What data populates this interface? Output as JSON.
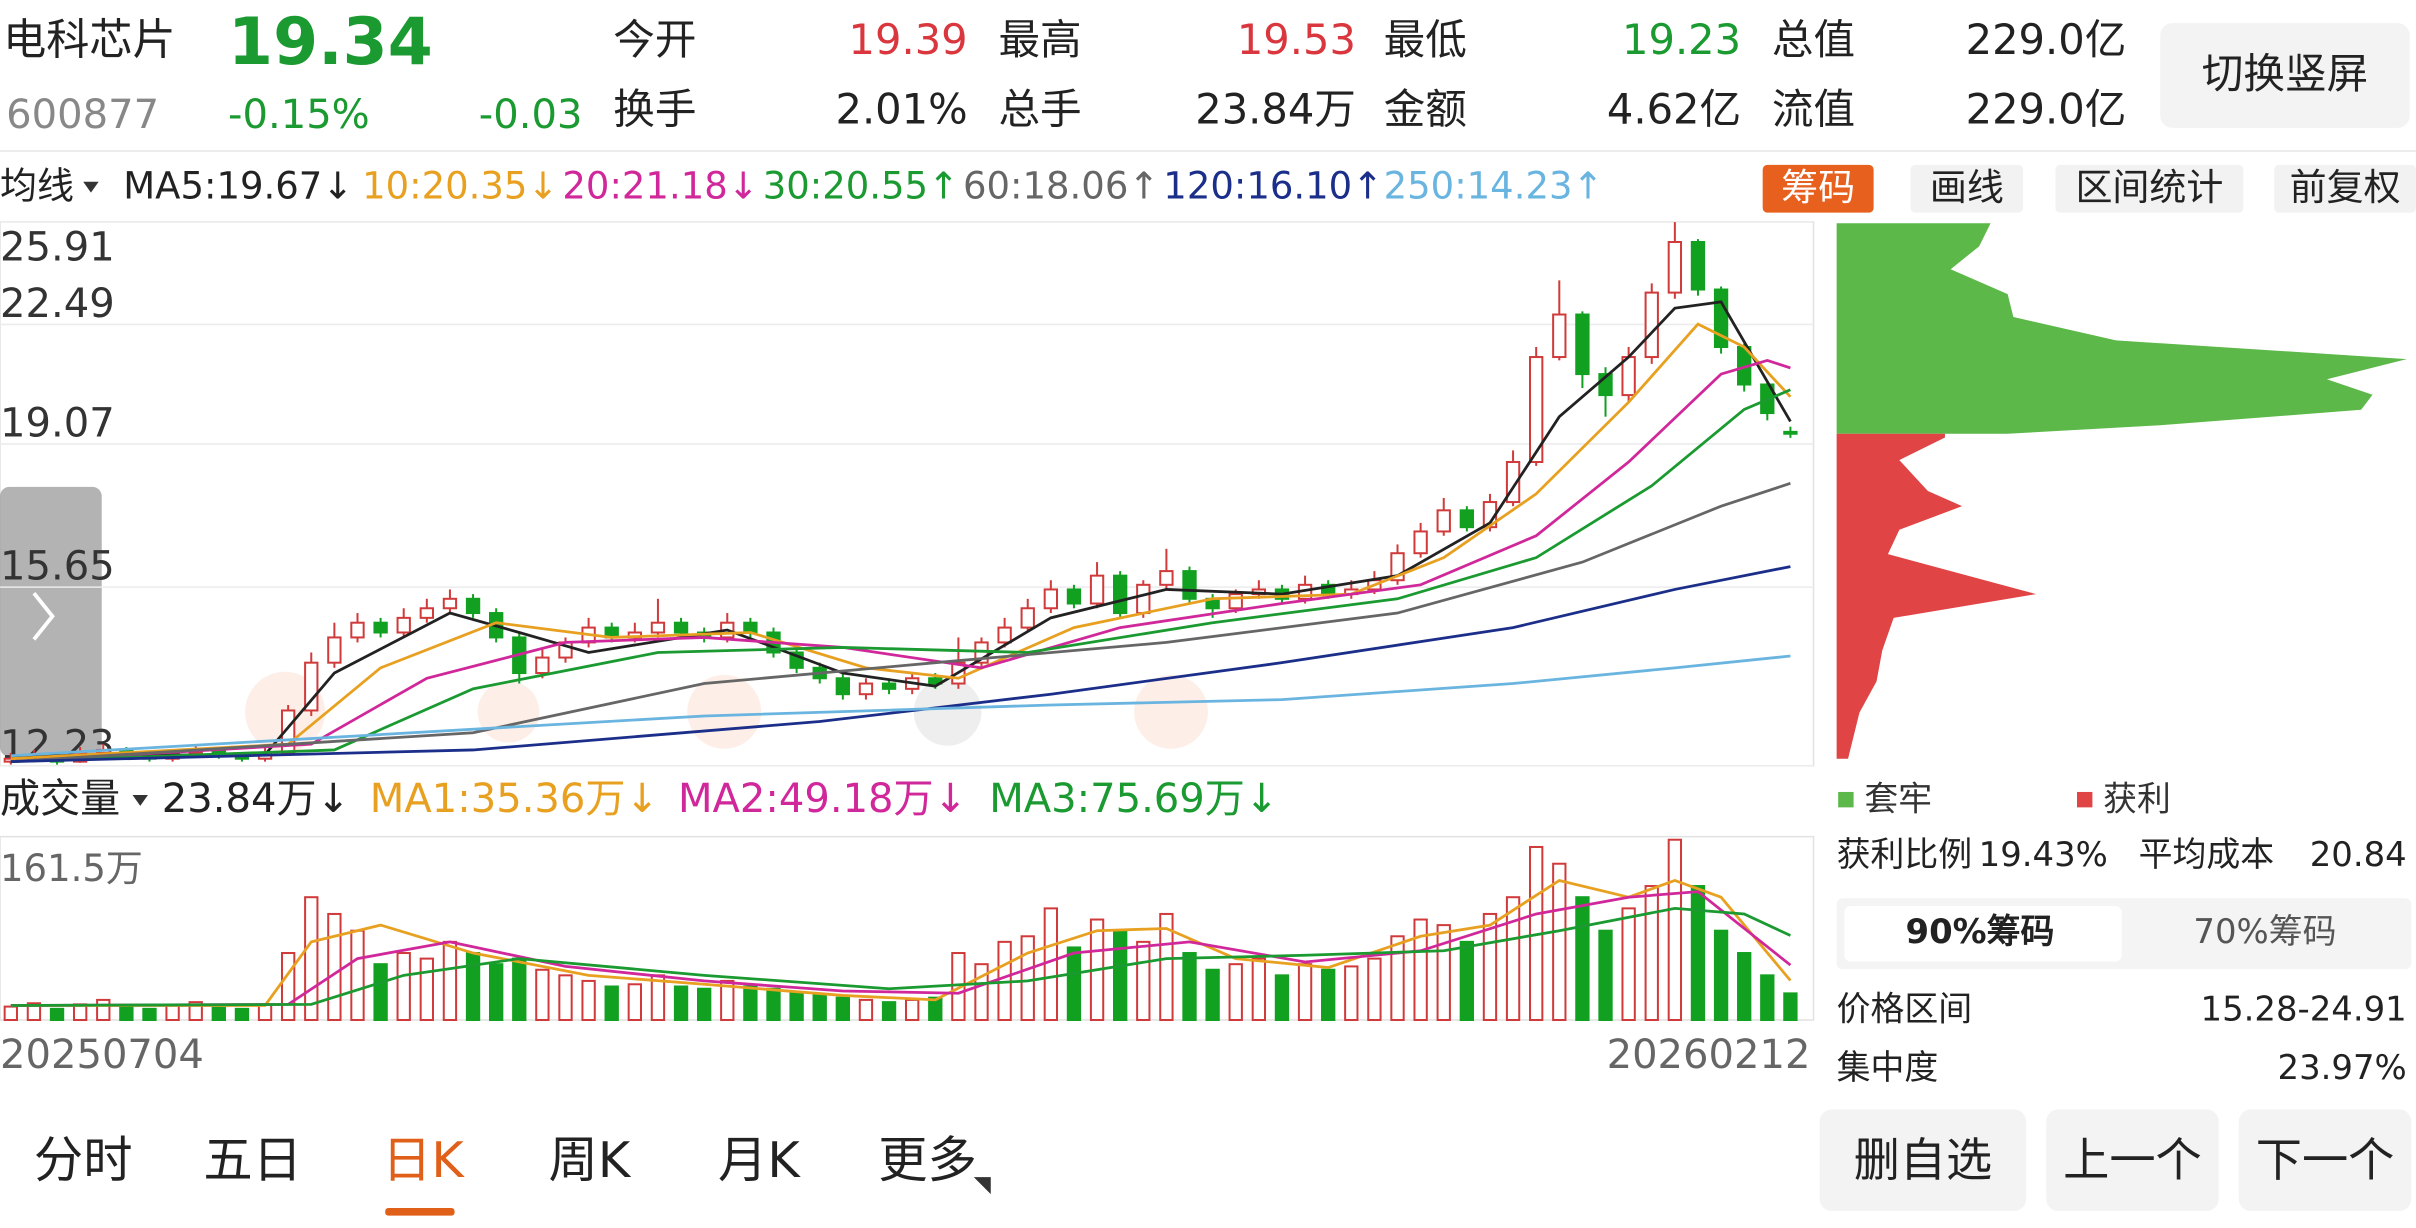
{
  "header": {
    "name": "电科芯片",
    "price": "19.34",
    "code": "600877",
    "change_pct": "-0.15%",
    "change": "-0.03",
    "price_color": "#1a9a30",
    "stats": [
      {
        "label": "今开",
        "value": "19.39",
        "color": "#d9363e"
      },
      {
        "label": "最高",
        "value": "19.53",
        "color": "#d9363e"
      },
      {
        "label": "最低",
        "value": "19.23",
        "color": "#1a9a30"
      },
      {
        "label": "总值",
        "value": "229.0亿",
        "color": "#222222"
      },
      {
        "label": "换手",
        "value": "2.01%",
        "color": "#222222"
      },
      {
        "label": "总手",
        "value": "23.84万",
        "color": "#222222"
      },
      {
        "label": "金额",
        "value": "4.62亿",
        "color": "#222222"
      },
      {
        "label": "流值",
        "value": "229.0亿",
        "color": "#222222"
      }
    ],
    "switch_button": "切换竖屏"
  },
  "ma_bar": {
    "selector": "均线",
    "items": [
      {
        "text": "MA5:19.67↓",
        "color": "#222222"
      },
      {
        "text": "10:20.35↓",
        "color": "#e8a020"
      },
      {
        "text": "20:21.18↓",
        "color": "#d0289a"
      },
      {
        "text": "30:20.55↑",
        "color": "#1a9a30"
      },
      {
        "text": "60:18.06↑",
        "color": "#666666"
      },
      {
        "text": "120:16.10↑",
        "color": "#1b2f8a"
      },
      {
        "text": "250:14.23↑",
        "color": "#6ab4e0"
      }
    ],
    "tools": [
      "筹码",
      "画线",
      "区间统计",
      "前复权"
    ]
  },
  "kline": {
    "type": "candlestick",
    "log_scale": true,
    "ylim": [
      12.23,
      25.91
    ],
    "yticks": [
      12.23,
      15.65,
      19.07,
      22.49,
      25.91
    ],
    "grid": true,
    "up_color": "#d03a3a",
    "down_color": "#12a020",
    "candles": [
      [
        12.3,
        12.35,
        12.45,
        12.25
      ],
      [
        12.35,
        12.4,
        12.5,
        12.3
      ],
      [
        12.4,
        12.3,
        12.45,
        12.25
      ],
      [
        12.3,
        12.45,
        12.55,
        12.28
      ],
      [
        12.45,
        12.5,
        12.6,
        12.4
      ],
      [
        12.5,
        12.4,
        12.55,
        12.35
      ],
      [
        12.4,
        12.35,
        12.45,
        12.3
      ],
      [
        12.35,
        12.45,
        12.5,
        12.3
      ],
      [
        12.45,
        12.5,
        12.6,
        12.4
      ],
      [
        12.5,
        12.4,
        12.55,
        12.35
      ],
      [
        12.4,
        12.35,
        12.45,
        12.3
      ],
      [
        12.35,
        12.45,
        12.55,
        12.3
      ],
      [
        12.45,
        13.2,
        13.3,
        12.4
      ],
      [
        13.2,
        14.1,
        14.3,
        13.1
      ],
      [
        14.1,
        14.6,
        14.9,
        14.0
      ],
      [
        14.6,
        14.9,
        15.1,
        14.5
      ],
      [
        14.9,
        14.7,
        15.0,
        14.6
      ],
      [
        14.7,
        15.0,
        15.2,
        14.6
      ],
      [
        15.0,
        15.2,
        15.4,
        14.9
      ],
      [
        15.2,
        15.4,
        15.6,
        15.1
      ],
      [
        15.4,
        15.1,
        15.5,
        15.0
      ],
      [
        15.1,
        14.6,
        15.2,
        14.5
      ],
      [
        14.6,
        13.9,
        14.7,
        13.7
      ],
      [
        13.9,
        14.2,
        14.4,
        13.8
      ],
      [
        14.2,
        14.5,
        14.6,
        14.1
      ],
      [
        14.5,
        14.8,
        15.0,
        14.4
      ],
      [
        14.8,
        14.6,
        14.9,
        14.5
      ],
      [
        14.6,
        14.7,
        14.9,
        14.5
      ],
      [
        14.7,
        14.9,
        15.4,
        14.6
      ],
      [
        14.9,
        14.7,
        15.0,
        14.6
      ],
      [
        14.7,
        14.6,
        14.8,
        14.5
      ],
      [
        14.6,
        14.9,
        15.1,
        14.5
      ],
      [
        14.9,
        14.7,
        15.0,
        14.6
      ],
      [
        14.7,
        14.3,
        14.8,
        14.2
      ],
      [
        14.3,
        14.0,
        14.4,
        13.9
      ],
      [
        14.0,
        13.8,
        14.1,
        13.7
      ],
      [
        13.8,
        13.5,
        13.9,
        13.4
      ],
      [
        13.5,
        13.7,
        13.8,
        13.4
      ],
      [
        13.7,
        13.6,
        13.8,
        13.5
      ],
      [
        13.6,
        13.8,
        13.9,
        13.5
      ],
      [
        13.8,
        13.7,
        13.9,
        13.6
      ],
      [
        13.7,
        14.1,
        14.6,
        13.6
      ],
      [
        14.1,
        14.5,
        14.6,
        14.0
      ],
      [
        14.5,
        14.8,
        15.0,
        14.4
      ],
      [
        14.8,
        15.2,
        15.4,
        14.7
      ],
      [
        15.2,
        15.6,
        15.8,
        15.1
      ],
      [
        15.6,
        15.3,
        15.7,
        15.2
      ],
      [
        15.3,
        15.9,
        16.2,
        15.2
      ],
      [
        15.9,
        15.1,
        16.0,
        15.0
      ],
      [
        15.1,
        15.7,
        15.8,
        15.0
      ],
      [
        15.7,
        16.0,
        16.5,
        15.6
      ],
      [
        16.0,
        15.4,
        16.1,
        15.3
      ],
      [
        15.4,
        15.2,
        15.5,
        15.0
      ],
      [
        15.2,
        15.5,
        15.6,
        15.1
      ],
      [
        15.5,
        15.6,
        15.8,
        15.4
      ],
      [
        15.6,
        15.4,
        15.7,
        15.3
      ],
      [
        15.4,
        15.7,
        15.9,
        15.3
      ],
      [
        15.7,
        15.5,
        15.8,
        15.4
      ],
      [
        15.5,
        15.6,
        15.8,
        15.4
      ],
      [
        15.6,
        15.8,
        16.0,
        15.5
      ],
      [
        15.8,
        16.4,
        16.6,
        15.7
      ],
      [
        16.4,
        16.9,
        17.1,
        16.3
      ],
      [
        16.9,
        17.4,
        17.7,
        16.8
      ],
      [
        17.4,
        17.0,
        17.5,
        16.9
      ],
      [
        17.0,
        17.6,
        17.8,
        16.9
      ],
      [
        17.6,
        18.6,
        18.9,
        17.5
      ],
      [
        18.6,
        21.5,
        21.8,
        18.5
      ],
      [
        21.5,
        22.8,
        23.9,
        21.4
      ],
      [
        22.8,
        21.0,
        22.9,
        20.6
      ],
      [
        21.0,
        20.4,
        21.2,
        19.8
      ],
      [
        20.4,
        21.5,
        21.8,
        20.2
      ],
      [
        21.5,
        23.5,
        23.8,
        21.3
      ],
      [
        23.5,
        25.2,
        25.9,
        23.3
      ],
      [
        25.2,
        23.6,
        25.3,
        23.4
      ],
      [
        23.6,
        21.8,
        23.7,
        21.6
      ],
      [
        21.8,
        20.7,
        21.9,
        20.5
      ],
      [
        20.7,
        19.9,
        20.8,
        19.7
      ],
      [
        19.39,
        19.34,
        19.53,
        19.23
      ]
    ],
    "ma_lines": [
      {
        "color": "#222222",
        "points": [
          [
            0,
            12.4
          ],
          [
            11,
            12.42
          ],
          [
            14,
            13.9
          ],
          [
            19,
            15.1
          ],
          [
            22,
            14.7
          ],
          [
            25,
            14.3
          ],
          [
            31,
            14.75
          ],
          [
            36,
            13.9
          ],
          [
            40,
            13.65
          ],
          [
            45,
            15.0
          ],
          [
            50,
            15.6
          ],
          [
            55,
            15.5
          ],
          [
            60,
            15.9
          ],
          [
            64,
            17.1
          ],
          [
            67,
            19.8
          ],
          [
            70,
            21.5
          ],
          [
            72,
            23.0
          ],
          [
            74,
            23.2
          ],
          [
            77,
            19.67
          ]
        ]
      },
      {
        "color": "#e8a020",
        "points": [
          [
            0,
            12.35
          ],
          [
            12,
            12.6
          ],
          [
            16,
            14.0
          ],
          [
            21,
            14.9
          ],
          [
            26,
            14.6
          ],
          [
            32,
            14.7
          ],
          [
            37,
            14.0
          ],
          [
            41,
            13.8
          ],
          [
            46,
            14.8
          ],
          [
            52,
            15.4
          ],
          [
            58,
            15.5
          ],
          [
            62,
            16.3
          ],
          [
            66,
            17.8
          ],
          [
            70,
            20.2
          ],
          [
            73,
            22.5
          ],
          [
            75,
            21.8
          ],
          [
            77,
            20.35
          ]
        ]
      },
      {
        "color": "#d0289a",
        "points": [
          [
            0,
            12.3
          ],
          [
            13,
            12.6
          ],
          [
            18,
            13.8
          ],
          [
            24,
            14.5
          ],
          [
            30,
            14.6
          ],
          [
            36,
            14.4
          ],
          [
            42,
            14.0
          ],
          [
            48,
            14.8
          ],
          [
            55,
            15.3
          ],
          [
            61,
            15.7
          ],
          [
            66,
            16.8
          ],
          [
            70,
            18.6
          ],
          [
            74,
            21.0
          ],
          [
            76,
            21.4
          ],
          [
            77,
            21.18
          ]
        ]
      },
      {
        "color": "#1a9a30",
        "points": [
          [
            0,
            12.3
          ],
          [
            14,
            12.5
          ],
          [
            20,
            13.6
          ],
          [
            28,
            14.3
          ],
          [
            36,
            14.4
          ],
          [
            44,
            14.3
          ],
          [
            52,
            14.9
          ],
          [
            60,
            15.4
          ],
          [
            66,
            16.3
          ],
          [
            71,
            18.0
          ],
          [
            75,
            20.0
          ],
          [
            77,
            20.55
          ]
        ]
      },
      {
        "color": "#666666",
        "points": [
          [
            0,
            12.3
          ],
          [
            20,
            12.8
          ],
          [
            30,
            13.7
          ],
          [
            40,
            14.1
          ],
          [
            50,
            14.5
          ],
          [
            60,
            15.1
          ],
          [
            68,
            16.2
          ],
          [
            74,
            17.5
          ],
          [
            77,
            18.06
          ]
        ]
      },
      {
        "color": "#1b2f8a",
        "points": [
          [
            0,
            12.3
          ],
          [
            20,
            12.5
          ],
          [
            35,
            13.0
          ],
          [
            45,
            13.5
          ],
          [
            55,
            14.1
          ],
          [
            65,
            14.8
          ],
          [
            72,
            15.6
          ],
          [
            77,
            16.1
          ]
        ]
      },
      {
        "color": "#6ab4e0",
        "points": [
          [
            0,
            12.4
          ],
          [
            30,
            13.1
          ],
          [
            45,
            13.3
          ],
          [
            55,
            13.4
          ],
          [
            65,
            13.7
          ],
          [
            72,
            14.0
          ],
          [
            77,
            14.23
          ]
        ]
      }
    ]
  },
  "volume": {
    "selector": "成交量",
    "items": [
      {
        "text": "23.84万↓",
        "color": "#222222"
      },
      {
        "text": "MA1:35.36万↓",
        "color": "#e8a020"
      },
      {
        "text": "MA2:49.18万↓",
        "color": "#d0289a"
      },
      {
        "text": "MA3:75.69万↓",
        "color": "#1a9a30"
      }
    ],
    "max_label": "161.5万",
    "ylim": [
      0,
      161.5
    ],
    "values": [
      12,
      15,
      10,
      14,
      18,
      12,
      10,
      13,
      16,
      11,
      10,
      14,
      60,
      110,
      95,
      80,
      50,
      60,
      55,
      70,
      60,
      50,
      55,
      45,
      40,
      35,
      30,
      32,
      40,
      30,
      28,
      35,
      30,
      28,
      25,
      22,
      20,
      18,
      16,
      18,
      20,
      60,
      50,
      70,
      75,
      100,
      65,
      90,
      80,
      70,
      95,
      60,
      45,
      50,
      55,
      40,
      50,
      45,
      48,
      55,
      75,
      90,
      85,
      70,
      95,
      110,
      155,
      140,
      110,
      80,
      100,
      120,
      161.5,
      120,
      80,
      60,
      40,
      23.84
    ],
    "ma_lines": [
      {
        "color": "#e8a020",
        "points": [
          [
            0,
            13
          ],
          [
            11,
            13
          ],
          [
            13,
            70
          ],
          [
            16,
            85
          ],
          [
            20,
            60
          ],
          [
            25,
            40
          ],
          [
            30,
            32
          ],
          [
            36,
            22
          ],
          [
            40,
            18
          ],
          [
            44,
            60
          ],
          [
            47,
            80
          ],
          [
            50,
            82
          ],
          [
            53,
            55
          ],
          [
            57,
            47
          ],
          [
            61,
            75
          ],
          [
            64,
            85
          ],
          [
            67,
            125
          ],
          [
            70,
            110
          ],
          [
            72,
            125
          ],
          [
            74,
            110
          ],
          [
            77,
            35.36
          ]
        ]
      },
      {
        "color": "#d0289a",
        "points": [
          [
            0,
            13
          ],
          [
            12,
            14
          ],
          [
            15,
            55
          ],
          [
            19,
            70
          ],
          [
            24,
            48
          ],
          [
            30,
            35
          ],
          [
            36,
            26
          ],
          [
            41,
            24
          ],
          [
            46,
            60
          ],
          [
            51,
            70
          ],
          [
            56,
            52
          ],
          [
            61,
            62
          ],
          [
            66,
            95
          ],
          [
            70,
            110
          ],
          [
            73,
            115
          ],
          [
            77,
            49.18
          ]
        ]
      },
      {
        "color": "#1a9a30",
        "points": [
          [
            0,
            13
          ],
          [
            13,
            14
          ],
          [
            17,
            40
          ],
          [
            22,
            55
          ],
          [
            30,
            40
          ],
          [
            38,
            28
          ],
          [
            44,
            35
          ],
          [
            50,
            55
          ],
          [
            56,
            58
          ],
          [
            62,
            62
          ],
          [
            67,
            80
          ],
          [
            72,
            100
          ],
          [
            75,
            95
          ],
          [
            77,
            75.69
          ]
        ]
      }
    ]
  },
  "dates": [
    "20250704",
    "20260212"
  ],
  "chips": {
    "profile_up": [
      [
        25.86,
        27
      ],
      [
        25.05,
        25
      ],
      [
        24.27,
        20
      ],
      [
        23.45,
        30
      ],
      [
        22.72,
        31
      ],
      [
        22.0,
        49
      ],
      [
        21.44,
        100
      ],
      [
        20.85,
        86
      ],
      [
        20.41,
        94
      ],
      [
        19.99,
        92
      ],
      [
        19.57,
        57
      ],
      [
        19.34,
        30
      ]
    ],
    "profile_down": [
      [
        19.34,
        19
      ],
      [
        19.24,
        19
      ],
      [
        18.65,
        11
      ],
      [
        17.87,
        16
      ],
      [
        17.5,
        22
      ],
      [
        16.94,
        11
      ],
      [
        16.38,
        9
      ],
      [
        15.5,
        35
      ],
      [
        15.0,
        10
      ],
      [
        14.34,
        8
      ],
      [
        13.74,
        7
      ],
      [
        13.16,
        4
      ],
      [
        12.35,
        2
      ]
    ],
    "up_color": "#5cb848",
    "down_color": "#e04444",
    "legend": [
      {
        "name": "套牢",
        "color": "#5cb848"
      },
      {
        "name": "获利",
        "color": "#e04444"
      }
    ],
    "profit_ratio_label": "获利比例",
    "profit_ratio": "19.43%",
    "avg_cost_label": "平均成本",
    "avg_cost": "20.84",
    "tabs": [
      "90%筹码",
      "70%筹码"
    ],
    "range_label": "价格区间",
    "range": "15.28-24.91",
    "concentration_label": "集中度",
    "concentration": "23.97%"
  },
  "tabs": [
    "分时",
    "五日",
    "日K",
    "周K",
    "月K",
    "更多"
  ],
  "active_tab": 2,
  "buttons": [
    "删自选",
    "上一个",
    "下一个"
  ]
}
